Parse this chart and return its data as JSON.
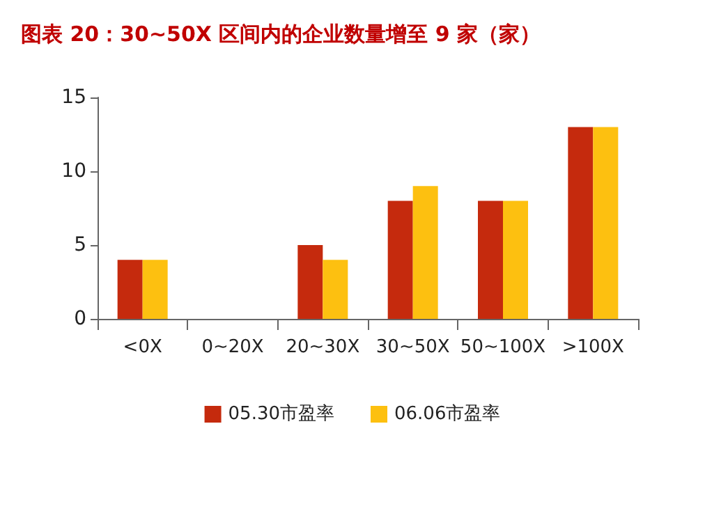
{
  "chart_data": {
    "type": "bar",
    "title": "图表 20：30~50X 区间内的企业数量增至 9 家（家）",
    "categories": [
      "<0X",
      "0~20X",
      "20~30X",
      "30~50X",
      "50~100X",
      ">100X"
    ],
    "series": [
      {
        "name": "05.30市盈率",
        "color": "#c52a0d",
        "values": [
          4,
          0,
          5,
          8,
          8,
          13
        ]
      },
      {
        "name": "06.06市盈率",
        "color": "#fdc010",
        "values": [
          4,
          0,
          4,
          9,
          8,
          13
        ]
      }
    ],
    "ylim": [
      0,
      15
    ],
    "yticks": [
      0,
      5,
      10,
      15
    ],
    "grid": false,
    "legend": "bottom"
  }
}
